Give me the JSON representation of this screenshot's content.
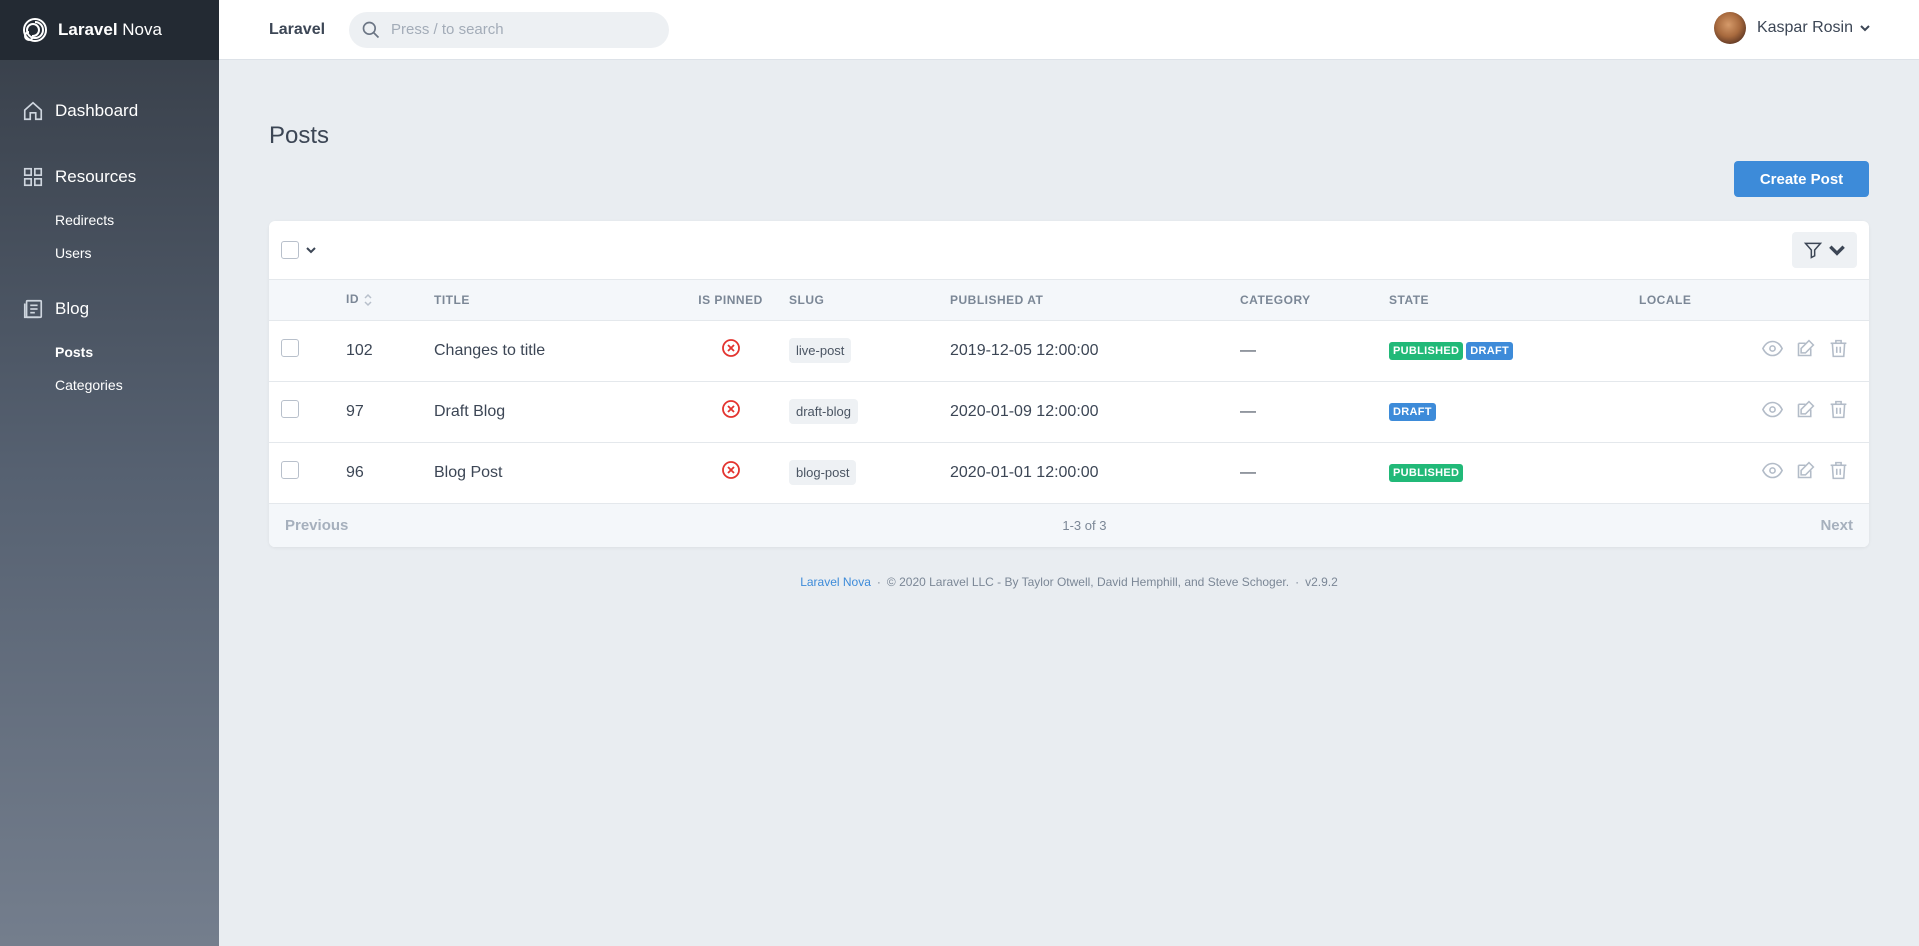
{
  "brand": {
    "name_bold": "Laravel",
    "name_rest": " Nova"
  },
  "header": {
    "app_name": "Laravel",
    "search_placeholder": "Press / to search",
    "user_name": "Kaspar Rosin"
  },
  "sidebar": {
    "dashboard": "Dashboard",
    "resources": "Resources",
    "redirects": "Redirects",
    "users": "Users",
    "blog": "Blog",
    "posts": "Posts",
    "categories": "Categories"
  },
  "page": {
    "title": "Posts",
    "create_label": "Create Post"
  },
  "table": {
    "headers": {
      "id": "ID",
      "title": "TITLE",
      "is_pinned": "IS PINNED",
      "slug": "SLUG",
      "published_at": "PUBLISHED AT",
      "category": "CATEGORY",
      "state": "STATE",
      "locale": "LOCALE"
    },
    "rows": [
      {
        "id": "102",
        "title": "Changes to title",
        "slug": "live-post",
        "published_at": "2019-12-05 12:00:00",
        "category": "—",
        "badges": [
          "PUBLISHED",
          "DRAFT"
        ]
      },
      {
        "id": "97",
        "title": "Draft Blog",
        "slug": "draft-blog",
        "published_at": "2020-01-09 12:00:00",
        "category": "—",
        "badges": [
          "DRAFT"
        ]
      },
      {
        "id": "96",
        "title": "Blog Post",
        "slug": "blog-post",
        "published_at": "2020-01-01 12:00:00",
        "category": "—",
        "badges": [
          "PUBLISHED"
        ]
      }
    ]
  },
  "pagination": {
    "previous": "Previous",
    "count": "1-3 of 3",
    "next": "Next"
  },
  "footer": {
    "link": "Laravel Nova",
    "text": "© 2020 Laravel LLC - By Taylor Otwell, David Hemphill, and Steve Schoger.",
    "version": "v2.9.2"
  },
  "colors": {
    "accent": "#3d8bd9",
    "published": "#21b978",
    "draft": "#3d8bd9",
    "danger": "#e3342f"
  }
}
